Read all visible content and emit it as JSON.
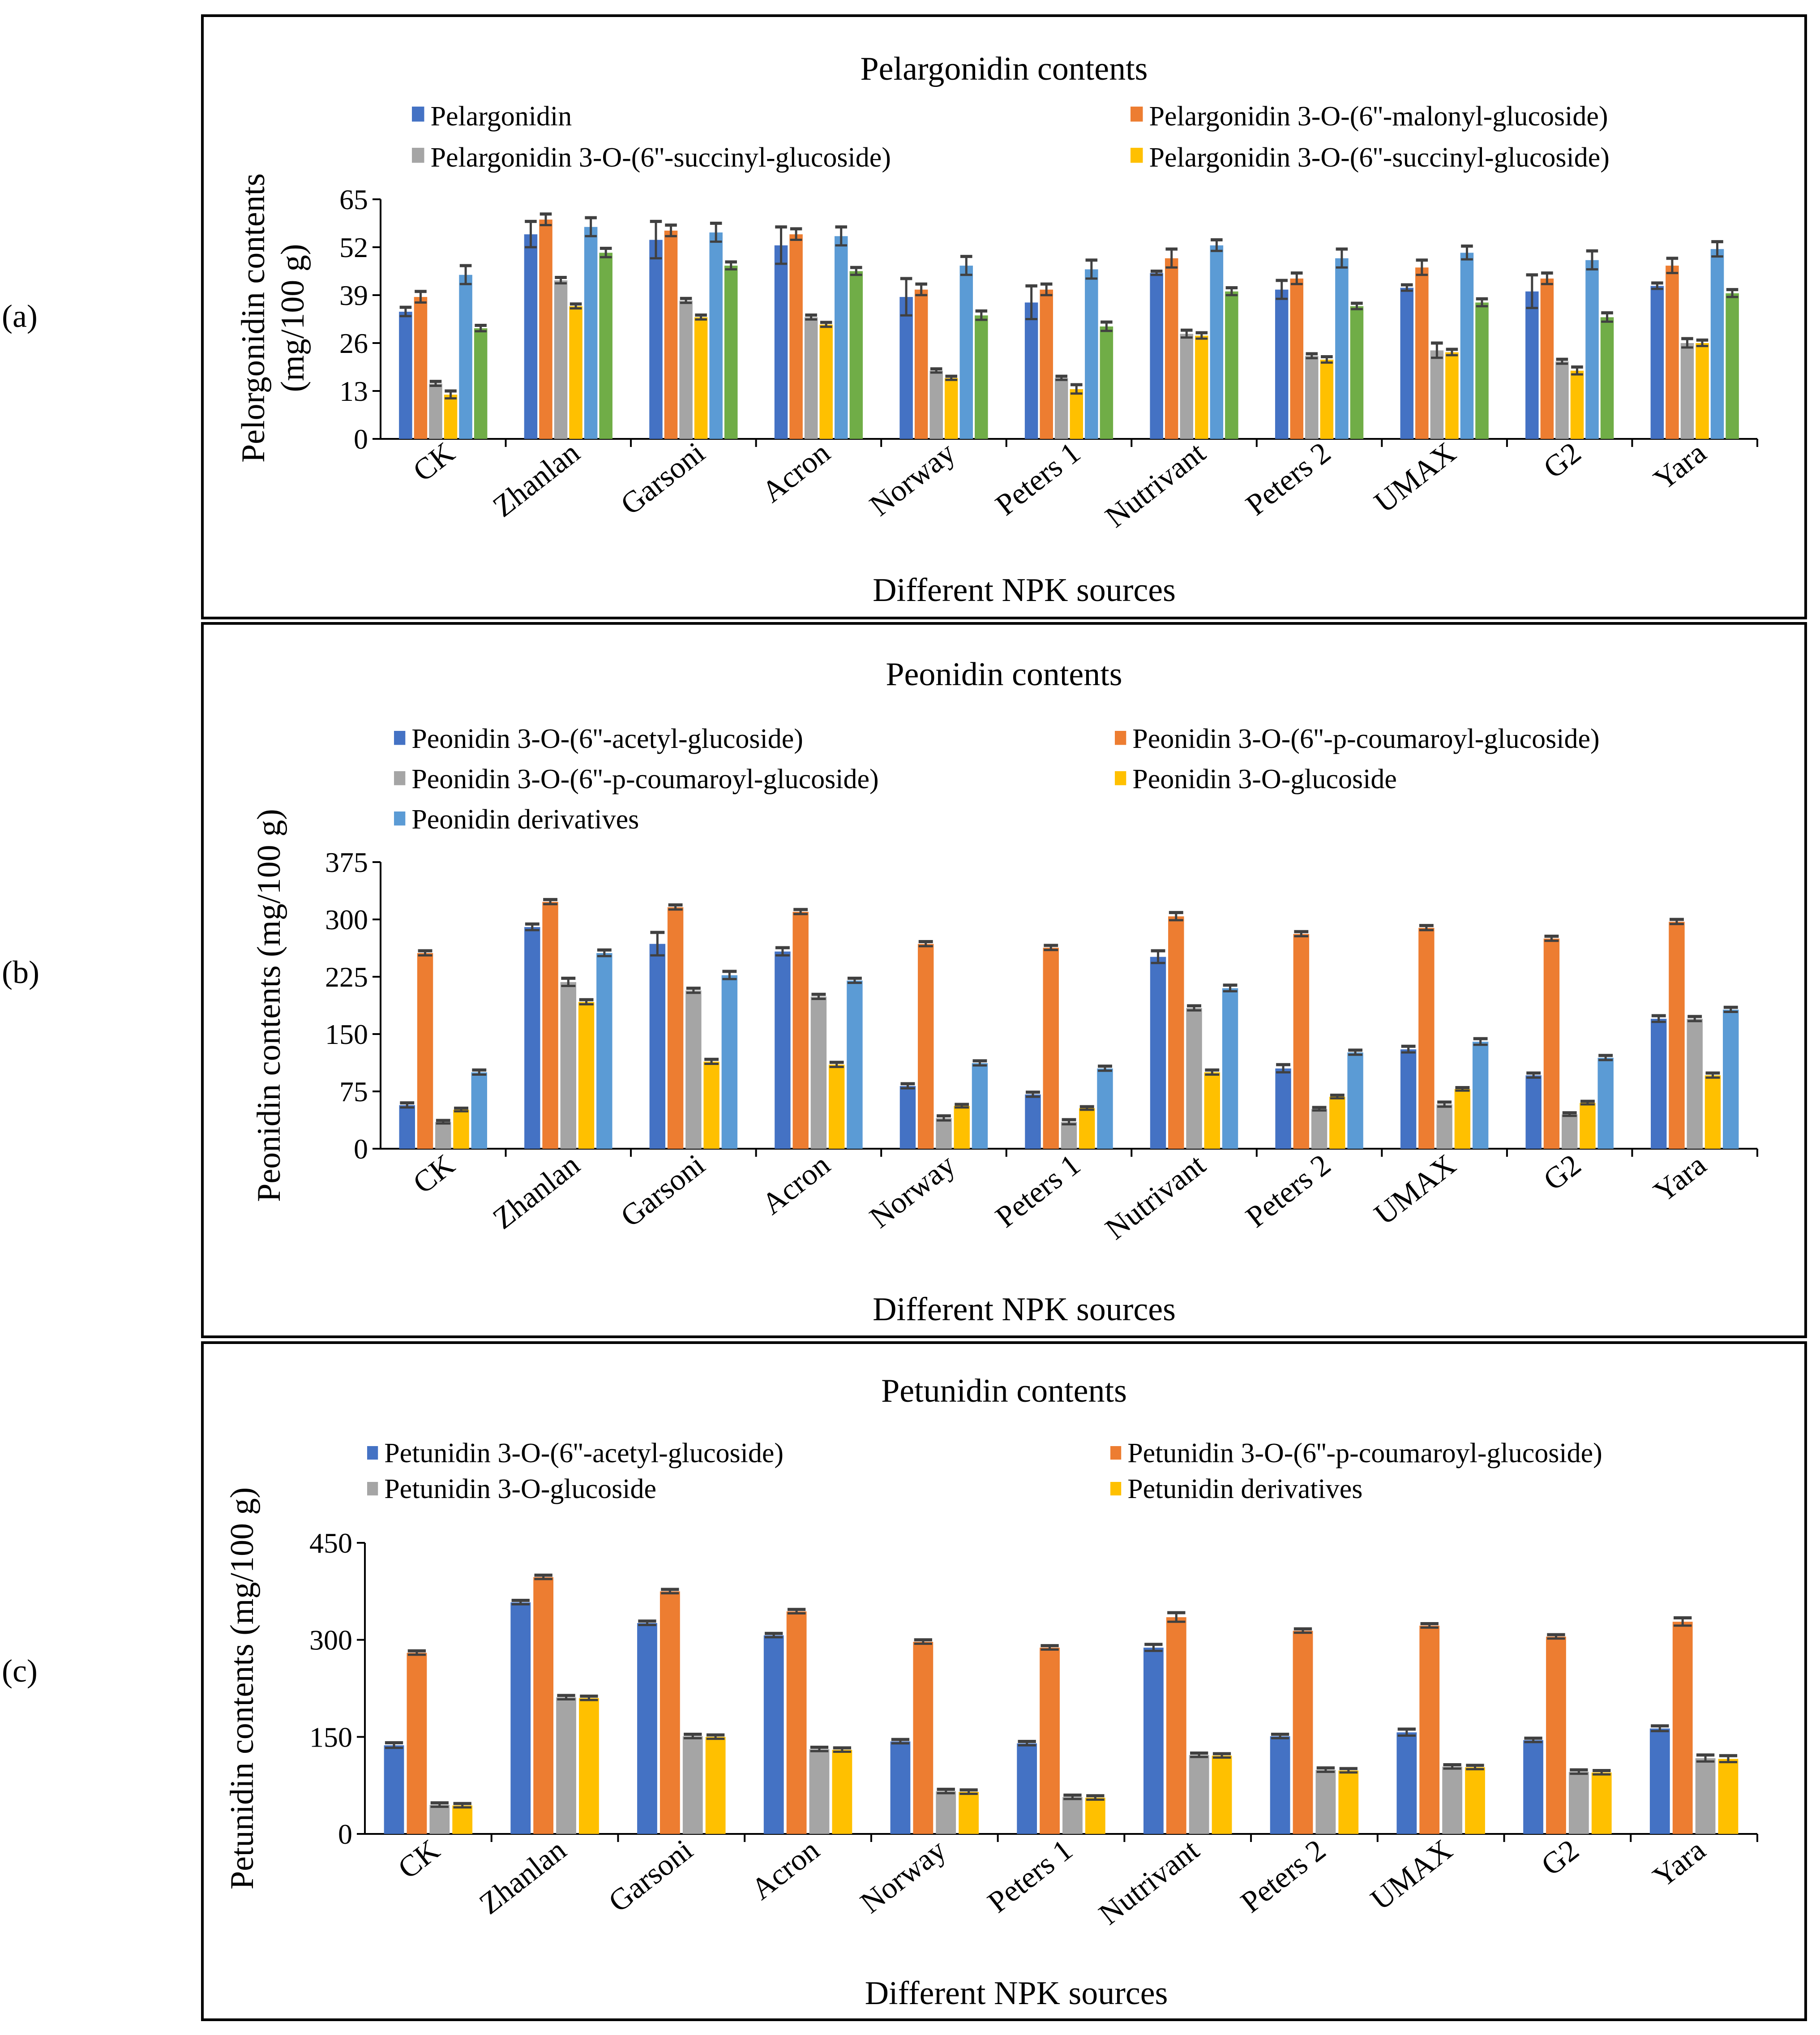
{
  "panel_labels": [
    "(a)",
    "(b)",
    "(c)"
  ],
  "colors": {
    "blue": "#4472C4",
    "orange": "#ED7D31",
    "gray": "#A5A5A5",
    "yellow": "#FFC000",
    "lightblue": "#5B9BD5",
    "green": "#70AD47",
    "error": "#404040",
    "axis": "#000000"
  },
  "chart_data": [
    {
      "type": "bar",
      "title": "Pelargonidin contents",
      "xlabel": "Different NPK sources",
      "ylabel_lines": [
        "Pelorgonidin contents",
        "(mg/100 g)"
      ],
      "ylim": [
        0,
        65
      ],
      "yticks": [
        0,
        13,
        26,
        39,
        52,
        65
      ],
      "categories": [
        "CK",
        "Zhanlan",
        "Garsoni",
        "Acron",
        "Norway",
        "Peters 1",
        "Nutrivant",
        "Peters 2",
        "UMAX",
        "G2",
        "Yara"
      ],
      "series": [
        {
          "name": "Pelargonidin",
          "color": "#4472C4",
          "legend": true,
          "values": [
            34.5,
            55.5,
            54,
            52.5,
            38.5,
            37,
            45,
            40.5,
            41,
            40,
            41.5
          ],
          "errors": [
            1.2,
            3.5,
            5,
            5,
            5,
            4.5,
            0.5,
            2.5,
            0.8,
            4.5,
            0.8
          ]
        },
        {
          "name": "Pelargonidin 3-O-(6''-malonyl-glucoside)",
          "color": "#ED7D31",
          "legend": true,
          "values": [
            38.5,
            59.5,
            56.5,
            55.5,
            40.5,
            40.5,
            49,
            43.5,
            46.5,
            43.5,
            47
          ],
          "errors": [
            1.5,
            1.5,
            1.5,
            1.5,
            1.5,
            1.5,
            2.5,
            1.5,
            2,
            1.5,
            2
          ]
        },
        {
          "name": "Pelargonidin 3-O-(6''-succinyl-glucoside)",
          "color": "#A5A5A5",
          "legend": true,
          "values": [
            15,
            43,
            37.5,
            33,
            18.5,
            16.5,
            28.5,
            22.5,
            24,
            21,
            26
          ],
          "errors": [
            0.6,
            0.8,
            0.6,
            0.6,
            0.5,
            0.5,
            1,
            0.6,
            2,
            0.6,
            1.2
          ]
        },
        {
          "name": "Pelargonidin 3-O-(6''-succinyl-glucoside)",
          "color": "#FFC000",
          "legend": true,
          "values": [
            12,
            36,
            33,
            31,
            16.5,
            13.5,
            28,
            21.5,
            23.5,
            18.5,
            26
          ],
          "errors": [
            1,
            0.6,
            0.6,
            0.6,
            0.5,
            1.2,
            0.8,
            0.8,
            0.8,
            1,
            0.8
          ]
        },
        {
          "name": "",
          "color": "#5B9BD5",
          "legend": false,
          "values": [
            44.5,
            57.5,
            56,
            55,
            47,
            46,
            52.5,
            49,
            50.5,
            48.5,
            51.5
          ],
          "errors": [
            2.5,
            2.5,
            2.5,
            2.5,
            2.5,
            2.5,
            1.5,
            2.5,
            1.8,
            2.5,
            2
          ]
        },
        {
          "name": "",
          "color": "#70AD47",
          "legend": false,
          "values": [
            30,
            50.5,
            47,
            45.5,
            33.5,
            30.5,
            40,
            36,
            37,
            33,
            39.5
          ],
          "errors": [
            0.8,
            1.2,
            1,
            1,
            1.2,
            1.2,
            1,
            0.8,
            1,
            1.2,
            1
          ]
        }
      ]
    },
    {
      "type": "bar",
      "title": "Peonidin contents",
      "xlabel": "Different NPK sources",
      "ylabel_lines": [
        "Peonidin contents (mg/100 g)"
      ],
      "ylim": [
        0,
        375
      ],
      "yticks": [
        0,
        75,
        150,
        225,
        300,
        375
      ],
      "categories": [
        "CK",
        "Zhanlan",
        "Garsoni",
        "Acron",
        "Norway",
        "Peters 1",
        "Nutrivant",
        "Peters 2",
        "UMAX",
        "G2",
        "Yara"
      ],
      "series": [
        {
          "name": "Peonidin 3-O-(6''-acetyl-glucoside)",
          "color": "#4472C4",
          "legend": true,
          "values": [
            57,
            290,
            268,
            258,
            82,
            71,
            251,
            105,
            130,
            96,
            170
          ],
          "errors": [
            3,
            4,
            15,
            5,
            3,
            3,
            8,
            5,
            4,
            3,
            4
          ]
        },
        {
          "name": "Peonidin 3-O-(6''-p-coumaroyl-glucoside)",
          "color": "#ED7D31",
          "legend": true,
          "values": [
            256,
            323,
            316,
            310,
            268,
            263,
            304,
            281,
            289,
            275,
            297
          ],
          "errors": [
            3,
            3,
            3,
            3,
            3,
            3,
            5,
            3,
            3,
            3,
            3
          ]
        },
        {
          "name": "Peonidin 3-O-(6''-p-coumaroyl-glucoside)",
          "color": "#A5A5A5",
          "legend": true,
          "values": [
            35,
            218,
            207,
            199,
            40,
            35,
            184,
            52,
            58,
            45,
            170
          ],
          "errors": [
            2,
            5,
            3,
            3,
            3,
            3,
            3,
            2,
            3,
            2,
            3
          ]
        },
        {
          "name": "Peonidin 3-O-glucoside",
          "color": "#FFC000",
          "legend": true,
          "values": [
            51,
            192,
            114,
            110,
            56,
            53,
            100,
            68,
            78,
            60,
            96
          ],
          "errors": [
            2,
            3,
            3,
            3,
            2,
            2,
            3,
            2,
            2,
            2,
            3
          ]
        },
        {
          "name": "Peonidin derivatives",
          "color": "#5B9BD5",
          "legend": true,
          "values": [
            100,
            256,
            227,
            220,
            112,
            105,
            210,
            126,
            140,
            119,
            182
          ],
          "errors": [
            3,
            4,
            5,
            3,
            3,
            3,
            4,
            3,
            4,
            3,
            3
          ]
        }
      ]
    },
    {
      "type": "bar",
      "title": "Petunidin contents",
      "xlabel": "Different NPK sources",
      "ylabel_lines": [
        "Petunidin contents (mg/100 g)"
      ],
      "ylim": [
        0,
        450
      ],
      "yticks": [
        0,
        150,
        300,
        450
      ],
      "categories": [
        "CK",
        "Zhanlan",
        "Garsoni",
        "Acron",
        "Norway",
        "Peters 1",
        "Nutrivant",
        "Peters 2",
        "UMAX",
        "G2",
        "Yara"
      ],
      "series": [
        {
          "name": "Petunidin 3-O-(6''-acetyl-glucoside)",
          "color": "#4472C4",
          "legend": true,
          "values": [
            137,
            358,
            326,
            307,
            143,
            140,
            288,
            151,
            157,
            145,
            163
          ],
          "errors": [
            4,
            3,
            3,
            3,
            3,
            3,
            5,
            3,
            5,
            3,
            4
          ]
        },
        {
          "name": "Petunidin 3-O-(6''-p-coumaroyl-glucoside)",
          "color": "#ED7D31",
          "legend": true,
          "values": [
            280,
            397,
            375,
            344,
            297,
            288,
            335,
            314,
            322,
            305,
            328
          ],
          "errors": [
            3,
            3,
            3,
            3,
            3,
            3,
            7,
            3,
            3,
            3,
            6
          ]
        },
        {
          "name": "Petunidin 3-O-glucoside",
          "color": "#A5A5A5",
          "legend": true,
          "values": [
            45,
            211,
            151,
            131,
            66,
            57,
            122,
            99,
            104,
            96,
            117
          ],
          "errors": [
            3,
            3,
            3,
            3,
            3,
            3,
            3,
            3,
            3,
            3,
            5
          ]
        },
        {
          "name": "Petunidin derivatives",
          "color": "#FFC000",
          "legend": true,
          "values": [
            44,
            210,
            150,
            130,
            65,
            56,
            121,
            98,
            103,
            95,
            116
          ],
          "errors": [
            3,
            3,
            3,
            3,
            3,
            3,
            3,
            3,
            3,
            3,
            5
          ]
        }
      ]
    }
  ]
}
